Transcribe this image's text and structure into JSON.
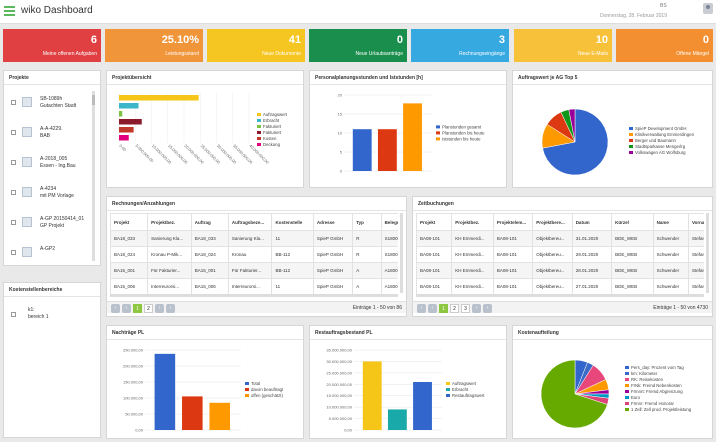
{
  "app": {
    "title": "wiko Dashboard",
    "user_initials": "BS",
    "date": "Donnerstag, 28. Februar 2019"
  },
  "tiles": [
    {
      "value": "6",
      "label": "Meine offenen Aufgaben",
      "color": "#e04042"
    },
    {
      "value": "25.10%",
      "label": "Leistungsstand",
      "color": "#f0953a"
    },
    {
      "value": "41",
      "label": "Neue Dokumente",
      "color": "#f5c522"
    },
    {
      "value": "0",
      "label": "Neue Urlaubsanträge",
      "color": "#1a8e4c"
    },
    {
      "value": "3",
      "label": "Rechnungseingänge",
      "color": "#37a9e1"
    },
    {
      "value": "10",
      "label": "Neue E-Mails",
      "color": "#f7c23a"
    },
    {
      "value": "0",
      "label": "Offene Mängel",
      "color": "#f38f31"
    }
  ],
  "projekte": {
    "title": "Projekte",
    "items": [
      {
        "l1": "SB-1089h",
        "l2": "Gutachten Stadt"
      },
      {
        "l1": "A-A-4229.",
        "l2": "BAB"
      },
      {
        "l1": "A-2018_005",
        "l2": "Essen - Ing.Bau"
      },
      {
        "l1": "A-4234",
        "l2": "mit PM Vorlage"
      },
      {
        "l1": "A-GP 20150414_01",
        "l2": "GP Projekt"
      },
      {
        "l1": "A-GP2",
        "l2": ""
      }
    ]
  },
  "kosten": {
    "title": "Kostenstellenbereiche",
    "items": [
      {
        "l1": "k1:",
        "l2": "bereich 1"
      }
    ]
  },
  "projektuebersicht": {
    "title": "Projektübersicht"
  },
  "personalplanung": {
    "title": "Personalplanungsstunden und Iststunden [h]"
  },
  "auftragswert": {
    "title": "Auftragswert je AG Top 5"
  },
  "rechnungen": {
    "title": "Rechnungen/Anzahlungen",
    "columns": [
      "Projekt",
      "Projektbez.",
      "Auftrag",
      "Auftragsbeze...",
      "Kostenstelle",
      "Adresse",
      "Typ",
      "Belegnu"
    ],
    "rows": [
      [
        "BA18_033",
        "Sanierung Kla...",
        "BA18_033",
        "Sanierung Kla...",
        "11",
        "SpieP GmbH",
        "R",
        "S18000"
      ],
      [
        "BA18_024",
        "Kronau P-Mik...",
        "BA18_024",
        "Kronau",
        "BB-112",
        "SpieP GmbH",
        "R",
        "S18002"
      ],
      [
        "BA15_001",
        "Für Fakturier...",
        "BA15_001",
        "Für Fakturier...",
        "BB-112",
        "SpieP GmbH",
        "A",
        "A18001"
      ],
      [
        "BA15_006",
        "Interreurorsi...",
        "BA15_006",
        "Interreurorsi...",
        "11",
        "SpieP GmbH",
        "A",
        "A18001"
      ]
    ],
    "pages": [
      "1",
      "2"
    ],
    "info": "Einträge 1 - 50 von 86"
  },
  "zeitbuchungen": {
    "title": "Zeitbuchungen",
    "columns": [
      "Projekt",
      "Projektbez.",
      "Projektelem...",
      "Projektbere...",
      "Datum",
      "Kürzel",
      "Name",
      "Vornam"
    ],
    "rows": [
      [
        "BA08-101",
        "KH Emmerdi...",
        "BA08-101",
        "Objektbereu...",
        "31.01.2020",
        "BDE_WEB",
        "Schwender",
        "Stefan"
      ],
      [
        "BA08-101",
        "KH Emmerdi...",
        "BA08-101",
        "Objektbereu...",
        "29.01.2020",
        "BDE_WEB",
        "Schwender",
        "Stefan"
      ],
      [
        "BA08-101",
        "KH Emmerdi...",
        "BA08-101",
        "Objektbereu...",
        "28.01.2020",
        "BDE_WEB",
        "Schwender",
        "Stefan"
      ],
      [
        "BA08-101",
        "KH Emmerdi...",
        "BA08-101",
        "Objektbereu...",
        "27.01.2020",
        "BDE_WEB",
        "Schwender",
        "Stefan"
      ]
    ],
    "pages": [
      "1",
      "2",
      "3"
    ],
    "info": "Einträge 1 - 50 von 4730"
  },
  "nachtraege": {
    "title": "Nachträge PL"
  },
  "restauftrag": {
    "title": "Restauftragsbestand PL"
  },
  "kostenaufteilung": {
    "title": "Kostenaufteilung"
  },
  "chart_data": [
    {
      "type": "bar",
      "orientation": "horizontal",
      "title": "Projektübersicht",
      "categories": [
        "Auftragswert",
        "Erbracht",
        "Fakturiert",
        "Fakturiert",
        "Kosten",
        "Deckung"
      ],
      "series": [
        {
          "values": [
            24500000,
            6000000,
            1000000,
            7000000,
            4500000,
            3000000
          ]
        }
      ],
      "colors": [
        "#f5c518",
        "#3cb6c8",
        "#7cc242",
        "#8b1a2b",
        "#c0392b",
        "#e3007e"
      ],
      "xlim": [
        0,
        40000000
      ],
      "x_ticks": [
        "0,00",
        "5.000.000,00",
        "10.000.000,00",
        "15.000.000,00",
        "20.000.000,00",
        "25.000.000,00",
        "30.000.000,00",
        "35.000.000,00",
        "40.000.000,00"
      ],
      "legend": "right"
    },
    {
      "type": "bar",
      "title": "Personalplanungsstunden und Iststunden [h]",
      "categories": [
        "Planstunden gesamt",
        "Planstunden bis heute",
        "Iststunden bis heute"
      ],
      "values": [
        11,
        11,
        17.8
      ],
      "colors": [
        "#3366cc",
        "#dc3912",
        "#ff9900"
      ],
      "ylim": [
        0,
        20
      ],
      "y_ticks": [
        "0",
        "5",
        "10",
        "15",
        "20"
      ],
      "legend": "right"
    },
    {
      "type": "pie",
      "title": "Auftragswert je AG Top 5",
      "labels": [
        "SpieP Development GmbH",
        "Klinikverwaltung Emmerdingen",
        "Berger und Baumann",
        "Stadtsparkasse Mengerlrg",
        "Volkswagen AG Wolfsburg"
      ],
      "values": [
        72,
        12,
        9,
        4,
        3
      ],
      "colors": [
        "#3366cc",
        "#ff9900",
        "#dc3912",
        "#109618",
        "#990099"
      ],
      "legend": "right"
    },
    {
      "type": "bar",
      "title": "Nachträge PL",
      "categories": [
        "Total",
        "davon beauftragt",
        "offen (geschätzt)"
      ],
      "values": [
        238000,
        105000,
        85000
      ],
      "colors": [
        "#3366cc",
        "#dc3912",
        "#ff9900"
      ],
      "ylim": [
        0,
        250000
      ],
      "y_ticks": [
        "0,00",
        "50.000,00",
        "100.000,00",
        "150.000,00",
        "200.000,00",
        "250.000,00"
      ],
      "legend": "right"
    },
    {
      "type": "bar",
      "title": "Restauftragsbestand PL",
      "categories": [
        "Auftragswert",
        "Erbracht",
        "Restauftragswert"
      ],
      "values": [
        30000000,
        9000000,
        21000000
      ],
      "colors": [
        "#f5c518",
        "#19a9a9",
        "#3366cc"
      ],
      "ylim": [
        0,
        35000000
      ],
      "y_ticks": [
        "0,00",
        "5.000.000,00",
        "10.000.000,00",
        "15.000.000,00",
        "20.000.000,00",
        "25.000.000,00",
        "30.000.000,00",
        "35.000.000,00"
      ],
      "legend": "right"
    },
    {
      "type": "pie",
      "title": "Kostenaufteilung",
      "labels": [
        "Pers_day: Prozent vom Tag",
        "km: Kilometer",
        "RK: Reisekosten",
        "FrNk: Fremd Nebenkosten",
        "Frmnrt: Fremd Abgrenzung",
        "Euro",
        "Frmnr: Fremd Honorar",
        "1 Zell: Zell prod. Projektleistung"
      ],
      "values": [
        6,
        3,
        9,
        5,
        2,
        2,
        3,
        70
      ],
      "colors": [
        "#3366cc",
        "#3b6bc6",
        "#e8477b",
        "#ff9900",
        "#990099",
        "#0099c6",
        "#dd4477",
        "#66aa00"
      ],
      "legend": "right"
    }
  ]
}
